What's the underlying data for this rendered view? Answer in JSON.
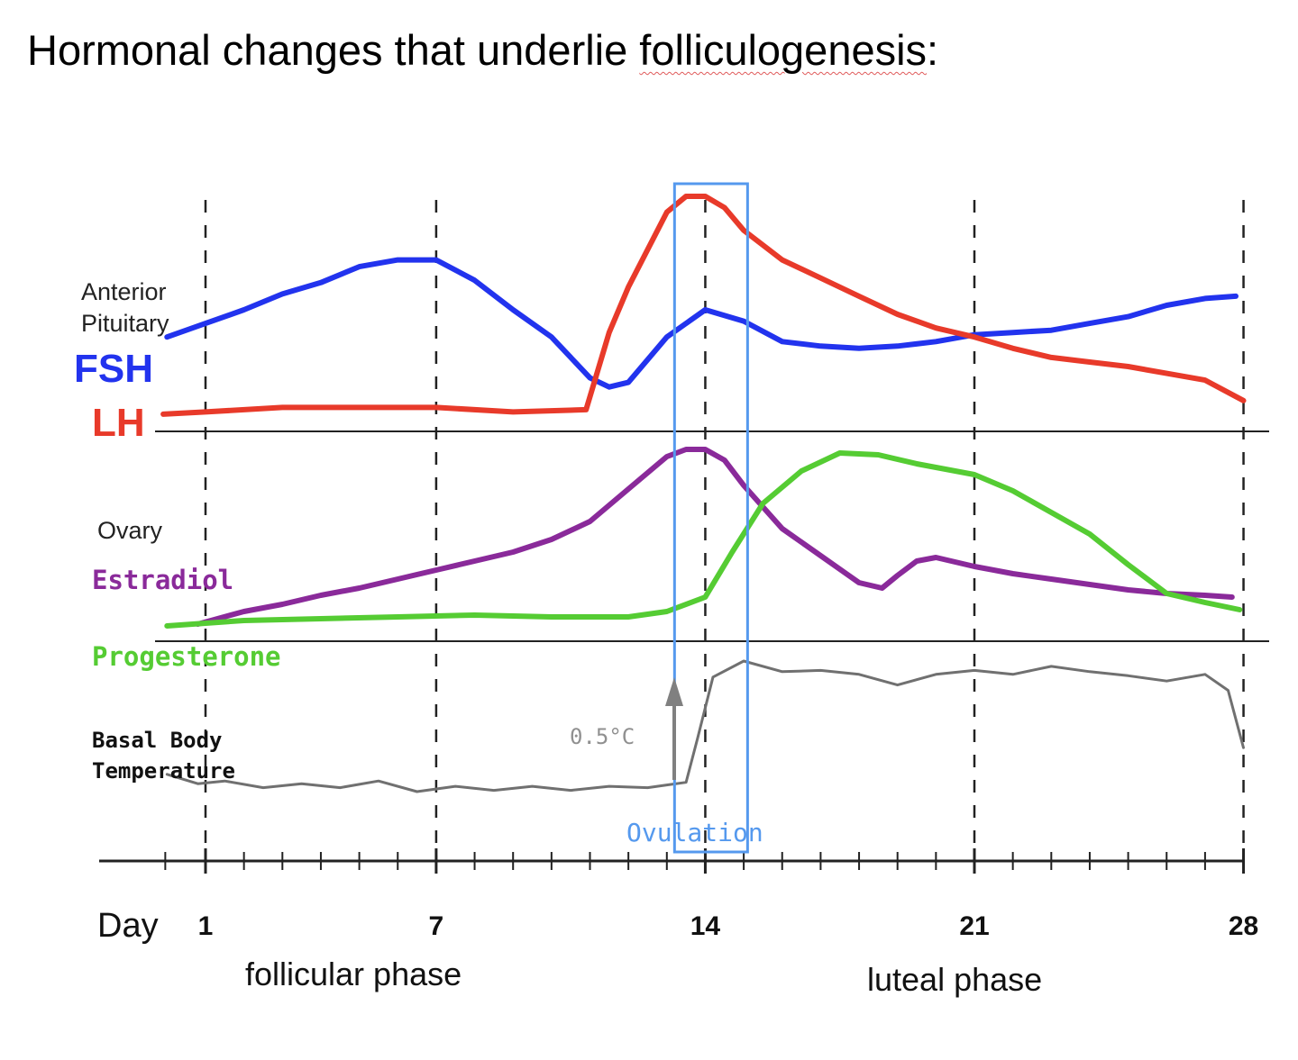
{
  "title": {
    "prefix": "Hormonal changes that underlie ",
    "underlined_word": "folliculogenesis",
    "suffix": ":"
  },
  "labels": {
    "anterior": "Anterior",
    "pituitary": "Pituitary",
    "fsh": "FSH",
    "lh": "LH",
    "ovary": "Ovary",
    "estradiol": "Estradiol",
    "progesterone": "Progesterone",
    "bbt_line1": "Basal Body",
    "bbt_line2": "Temperature",
    "temp_rise": "0.5°C",
    "ovulation": "Ovulation",
    "day": "Day",
    "follicular": "follicular phase",
    "luteal": "luteal phase"
  },
  "colors": {
    "fsh": "#2233ee",
    "lh": "#e83a2a",
    "estradiol": "#8a2a9a",
    "progesterone": "#55cc33",
    "bbt": "#707070",
    "ovulation": "#5599ee",
    "axis": "#222222",
    "arrow": "#808080"
  },
  "chart_data": {
    "type": "line",
    "xlabel": "Day",
    "xticks": [
      1,
      7,
      14,
      21,
      28
    ],
    "xlim": [
      -0.1,
      28
    ],
    "ovulation_window": [
      13.2,
      15.1
    ],
    "panels": [
      {
        "name": "Anterior Pituitary",
        "series": [
          {
            "name": "FSH",
            "color_key": "fsh",
            "x": [
              0,
              1,
              2,
              3,
              4,
              5,
              6,
              7,
              8,
              9,
              10,
              11,
              11.5,
              12,
              13,
              14,
              15,
              16,
              17,
              18,
              19,
              20,
              21,
              22,
              23,
              24,
              25,
              26,
              27,
              27.8
            ],
            "y": [
              0.38,
              0.44,
              0.5,
              0.57,
              0.62,
              0.69,
              0.72,
              0.72,
              0.63,
              0.5,
              0.38,
              0.2,
              0.16,
              0.18,
              0.38,
              0.5,
              0.45,
              0.36,
              0.34,
              0.33,
              0.34,
              0.36,
              0.39,
              0.4,
              0.41,
              0.44,
              0.47,
              0.52,
              0.55,
              0.56
            ]
          },
          {
            "name": "LH",
            "color_key": "lh",
            "x": [
              -0.1,
              1,
              3,
              5,
              7,
              9,
              10.9,
              11.5,
              12,
              13,
              13.5,
              14,
              14.5,
              15,
              16,
              17,
              18,
              19,
              20,
              21,
              22,
              23,
              24,
              25,
              26,
              27,
              28
            ],
            "y": [
              0.04,
              0.05,
              0.07,
              0.07,
              0.07,
              0.05,
              0.06,
              0.4,
              0.6,
              0.93,
              1.0,
              1.0,
              0.95,
              0.85,
              0.72,
              0.64,
              0.56,
              0.48,
              0.42,
              0.38,
              0.33,
              0.29,
              0.27,
              0.25,
              0.22,
              0.19,
              0.1
            ]
          }
        ]
      },
      {
        "name": "Ovary",
        "series": [
          {
            "name": "Estradiol",
            "color_key": "estradiol",
            "x": [
              0.8,
              2,
              3,
              4,
              5,
              6,
              7,
              8,
              9,
              10,
              11,
              12,
              13,
              13.5,
              14,
              14.5,
              15,
              16,
              17,
              18,
              18.6,
              19,
              19.5,
              20,
              21,
              22,
              23,
              24,
              25,
              26,
              27,
              27.7
            ],
            "y": [
              0.05,
              0.12,
              0.16,
              0.21,
              0.25,
              0.3,
              0.35,
              0.4,
              0.45,
              0.52,
              0.62,
              0.8,
              0.98,
              1.02,
              1.02,
              0.96,
              0.82,
              0.58,
              0.43,
              0.28,
              0.25,
              0.32,
              0.4,
              0.42,
              0.37,
              0.33,
              0.3,
              0.27,
              0.24,
              0.22,
              0.21,
              0.2
            ]
          },
          {
            "name": "Progesterone",
            "color_key": "progesterone",
            "x": [
              0,
              2,
              4,
              6,
              8,
              10,
              11,
              12,
              13,
              14,
              14.7,
              15.5,
              16.5,
              17.5,
              18.5,
              19.5,
              20.5,
              21,
              22,
              23,
              24,
              25,
              26,
              27,
              27.9
            ],
            "y": [
              0.04,
              0.07,
              0.08,
              0.09,
              0.1,
              0.09,
              0.09,
              0.09,
              0.12,
              0.2,
              0.45,
              0.72,
              0.9,
              1.0,
              0.99,
              0.94,
              0.9,
              0.88,
              0.79,
              0.67,
              0.55,
              0.38,
              0.22,
              0.17,
              0.13
            ]
          }
        ]
      },
      {
        "name": "Basal Body Temperature",
        "series": [
          {
            "name": "Basal Body Temperature",
            "color_key": "bbt",
            "x": [
              0,
              0.8,
              1.5,
              2.5,
              3.5,
              4.5,
              5.5,
              6.5,
              7.5,
              8.5,
              9.5,
              10.5,
              11.5,
              12.5,
              13,
              13.5,
              13.8,
              14.2,
              15,
              16,
              17,
              18,
              19,
              20,
              21,
              22,
              23,
              24,
              25,
              26,
              27,
              27.6,
              28
            ],
            "y": [
              0.15,
              0.08,
              0.1,
              0.05,
              0.08,
              0.05,
              0.1,
              0.02,
              0.06,
              0.03,
              0.06,
              0.03,
              0.06,
              0.05,
              0.07,
              0.09,
              0.42,
              0.88,
              1.0,
              0.92,
              0.93,
              0.9,
              0.82,
              0.9,
              0.93,
              0.9,
              0.96,
              0.92,
              0.89,
              0.85,
              0.9,
              0.78,
              0.35
            ]
          }
        ]
      }
    ]
  }
}
